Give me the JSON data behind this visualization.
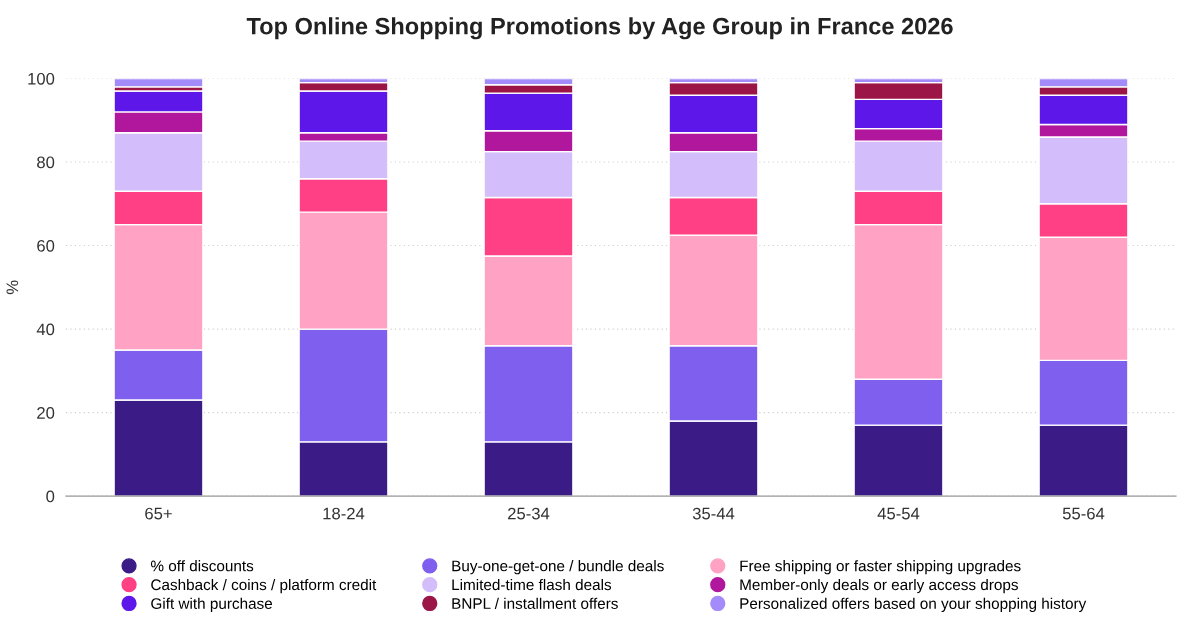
{
  "chart_data": {
    "type": "bar",
    "stacked": true,
    "title": "Top Online Shopping Promotions by Age Group in France 2026",
    "ylabel": "%",
    "categories": [
      "65+",
      "18-24",
      "25-34",
      "35-44",
      "45-54",
      "55-64"
    ],
    "series": [
      {
        "name": "% off discounts",
        "color": "#3b1c87",
        "values": [
          23,
          13,
          13,
          18,
          17,
          17
        ]
      },
      {
        "name": "Buy-one-get-one / bundle deals",
        "color": "#7f5fee",
        "values": [
          12,
          27,
          23,
          18,
          11,
          15.5
        ]
      },
      {
        "name": "Free shipping or faster shipping upgrades",
        "color": "#ffa2c3",
        "values": [
          30,
          28,
          21.5,
          26.5,
          37,
          29.5
        ]
      },
      {
        "name": "Cashback / coins / platform credit",
        "color": "#ff4085",
        "values": [
          8,
          8,
          14,
          9,
          8,
          8
        ]
      },
      {
        "name": "Limited-time flash deals",
        "color": "#d4bdfb",
        "values": [
          14,
          9,
          11,
          11,
          12,
          16
        ]
      },
      {
        "name": "Member-only deals or early access drops",
        "color": "#b0179c",
        "values": [
          5,
          2,
          5,
          4.5,
          3,
          3
        ]
      },
      {
        "name": "Gift with purchase",
        "color": "#5d17e9",
        "values": [
          5,
          10,
          9,
          9,
          7,
          7
        ]
      },
      {
        "name": "BNPL / installment offers",
        "color": "#9b1647",
        "values": [
          1,
          2,
          2,
          3,
          4,
          2
        ]
      },
      {
        "name": "Personalized offers based on your shopping history",
        "color": "#a48bfa",
        "values": [
          2,
          1,
          1.5,
          1,
          1,
          2
        ]
      }
    ],
    "ylim": [
      0,
      100
    ],
    "yticks": [
      0,
      20,
      40,
      60,
      80,
      100
    ],
    "grid": "y",
    "legend": "bottom"
  }
}
